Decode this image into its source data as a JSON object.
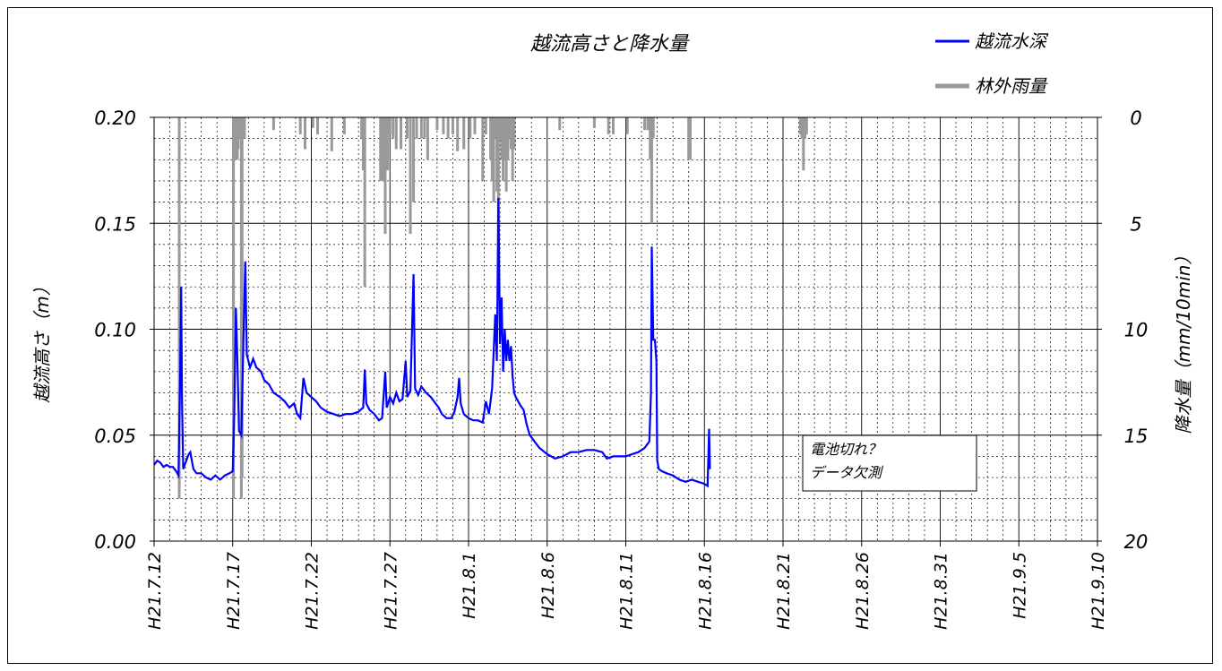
{
  "chart_data": {
    "type": "line",
    "title": "越流高さと降水量",
    "ylabel": "越流高さ（m）",
    "y2label": "降水量（mm/10min）",
    "ylim": [
      0,
      0.2
    ],
    "y2lim": [
      0,
      20
    ],
    "y2_inverted": true,
    "grid": true,
    "legend_position": "top-right",
    "y_ticks": [
      "0.00",
      "0.05",
      "0.10",
      "0.15",
      "0.20"
    ],
    "y2_ticks": [
      "20",
      "15",
      "10",
      "5",
      "0"
    ],
    "x_ticks": [
      "H21.7.12",
      "H21.7.17",
      "H21.7.22",
      "H21.7.27",
      "H21.8.1",
      "H21.8.6",
      "H21.8.11",
      "H21.8.16",
      "H21.8.21",
      "H21.8.26",
      "H21.8.31",
      "H21.9.5",
      "H21.9.10"
    ],
    "x_range_days": [
      0,
      60
    ],
    "series": [
      {
        "name": "越流水深",
        "color": "#0000ff",
        "axis": "left",
        "points": [
          [
            0.0,
            0.036
          ],
          [
            0.2,
            0.038
          ],
          [
            0.4,
            0.037
          ],
          [
            0.6,
            0.035
          ],
          [
            0.8,
            0.036
          ],
          [
            1.0,
            0.035
          ],
          [
            1.2,
            0.035
          ],
          [
            1.4,
            0.033
          ],
          [
            1.55,
            0.031
          ],
          [
            1.65,
            0.075
          ],
          [
            1.72,
            0.12
          ],
          [
            1.78,
            0.065
          ],
          [
            1.85,
            0.034
          ],
          [
            2.0,
            0.037
          ],
          [
            2.2,
            0.041
          ],
          [
            2.3,
            0.042
          ],
          [
            2.5,
            0.034
          ],
          [
            2.7,
            0.032
          ],
          [
            3.0,
            0.032
          ],
          [
            3.3,
            0.03
          ],
          [
            3.6,
            0.029
          ],
          [
            3.9,
            0.031
          ],
          [
            4.2,
            0.029
          ],
          [
            4.5,
            0.031
          ],
          [
            4.8,
            0.032
          ],
          [
            5.0,
            0.033
          ],
          [
            5.1,
            0.06
          ],
          [
            5.2,
            0.11
          ],
          [
            5.3,
            0.085
          ],
          [
            5.4,
            0.052
          ],
          [
            5.55,
            0.05
          ],
          [
            5.7,
            0.1
          ],
          [
            5.8,
            0.132
          ],
          [
            5.9,
            0.088
          ],
          [
            6.1,
            0.082
          ],
          [
            6.3,
            0.086
          ],
          [
            6.5,
            0.082
          ],
          [
            6.8,
            0.08
          ],
          [
            7.0,
            0.076
          ],
          [
            7.3,
            0.074
          ],
          [
            7.6,
            0.07
          ],
          [
            8.0,
            0.068
          ],
          [
            8.3,
            0.066
          ],
          [
            8.6,
            0.063
          ],
          [
            8.9,
            0.065
          ],
          [
            9.1,
            0.06
          ],
          [
            9.3,
            0.058
          ],
          [
            9.5,
            0.077
          ],
          [
            9.7,
            0.07
          ],
          [
            10.0,
            0.068
          ],
          [
            10.3,
            0.066
          ],
          [
            10.6,
            0.063
          ],
          [
            11.0,
            0.061
          ],
          [
            11.4,
            0.06
          ],
          [
            11.8,
            0.059
          ],
          [
            12.2,
            0.06
          ],
          [
            12.6,
            0.06
          ],
          [
            13.0,
            0.061
          ],
          [
            13.3,
            0.063
          ],
          [
            13.4,
            0.081
          ],
          [
            13.5,
            0.065
          ],
          [
            13.7,
            0.062
          ],
          [
            14.0,
            0.06
          ],
          [
            14.3,
            0.057
          ],
          [
            14.5,
            0.058
          ],
          [
            14.7,
            0.08
          ],
          [
            14.8,
            0.063
          ],
          [
            15.0,
            0.068
          ],
          [
            15.2,
            0.065
          ],
          [
            15.4,
            0.07
          ],
          [
            15.6,
            0.066
          ],
          [
            15.8,
            0.067
          ],
          [
            16.0,
            0.085
          ],
          [
            16.1,
            0.068
          ],
          [
            16.3,
            0.071
          ],
          [
            16.5,
            0.126
          ],
          [
            16.6,
            0.072
          ],
          [
            16.8,
            0.069
          ],
          [
            17.0,
            0.073
          ],
          [
            17.3,
            0.07
          ],
          [
            17.6,
            0.068
          ],
          [
            17.9,
            0.065
          ],
          [
            18.1,
            0.063
          ],
          [
            18.3,
            0.06
          ],
          [
            18.6,
            0.058
          ],
          [
            18.9,
            0.058
          ],
          [
            19.1,
            0.061
          ],
          [
            19.3,
            0.068
          ],
          [
            19.4,
            0.077
          ],
          [
            19.5,
            0.065
          ],
          [
            19.7,
            0.06
          ],
          [
            20.0,
            0.058
          ],
          [
            20.3,
            0.057
          ],
          [
            20.6,
            0.057
          ],
          [
            20.9,
            0.056
          ],
          [
            21.1,
            0.066
          ],
          [
            21.3,
            0.06
          ],
          [
            21.5,
            0.072
          ],
          [
            21.6,
            0.09
          ],
          [
            21.7,
            0.107
          ],
          [
            21.8,
            0.085
          ],
          [
            21.9,
            0.162
          ],
          [
            22.0,
            0.093
          ],
          [
            22.1,
            0.115
          ],
          [
            22.2,
            0.08
          ],
          [
            22.3,
            0.1
          ],
          [
            22.4,
            0.085
          ],
          [
            22.5,
            0.095
          ],
          [
            22.6,
            0.085
          ],
          [
            22.7,
            0.092
          ],
          [
            22.8,
            0.078
          ],
          [
            22.9,
            0.07
          ],
          [
            23.0,
            0.068
          ],
          [
            23.3,
            0.064
          ],
          [
            23.5,
            0.062
          ],
          [
            23.7,
            0.055
          ],
          [
            23.9,
            0.05
          ],
          [
            24.2,
            0.047
          ],
          [
            24.5,
            0.044
          ],
          [
            25.0,
            0.041
          ],
          [
            25.5,
            0.039
          ],
          [
            26.0,
            0.04
          ],
          [
            26.5,
            0.042
          ],
          [
            27.0,
            0.042
          ],
          [
            27.5,
            0.043
          ],
          [
            28.0,
            0.043
          ],
          [
            28.5,
            0.042
          ],
          [
            28.8,
            0.039
          ],
          [
            29.2,
            0.04
          ],
          [
            29.6,
            0.04
          ],
          [
            30.0,
            0.04
          ],
          [
            30.4,
            0.041
          ],
          [
            30.8,
            0.042
          ],
          [
            31.2,
            0.044
          ],
          [
            31.5,
            0.047
          ],
          [
            31.6,
            0.07
          ],
          [
            31.65,
            0.139
          ],
          [
            31.75,
            0.095
          ],
          [
            31.85,
            0.095
          ],
          [
            31.95,
            0.085
          ],
          [
            32.0,
            0.038
          ],
          [
            32.1,
            0.034
          ],
          [
            32.3,
            0.033
          ],
          [
            32.6,
            0.032
          ],
          [
            33.0,
            0.031
          ],
          [
            33.4,
            0.029
          ],
          [
            33.8,
            0.028
          ],
          [
            34.2,
            0.029
          ],
          [
            34.6,
            0.028
          ],
          [
            35.0,
            0.027
          ],
          [
            35.2,
            0.026
          ],
          [
            35.3,
            0.053
          ],
          [
            35.35,
            0.034
          ]
        ]
      },
      {
        "name": "林外雨量",
        "color": "#999999",
        "axis": "right",
        "bars": [
          [
            1.6,
            18.0
          ],
          [
            5.05,
            18.0
          ],
          [
            5.2,
            2.0
          ],
          [
            5.3,
            2.0
          ],
          [
            5.35,
            1.5
          ],
          [
            5.45,
            1.0
          ],
          [
            5.55,
            18.0
          ],
          [
            5.6,
            17.0
          ],
          [
            5.65,
            1.0
          ],
          [
            5.75,
            1.0
          ],
          [
            7.6,
            0.6
          ],
          [
            9.3,
            0.8
          ],
          [
            9.6,
            1.5
          ],
          [
            10.1,
            0.5
          ],
          [
            10.4,
            0.8
          ],
          [
            11.3,
            1.6
          ],
          [
            12.1,
            0.8
          ],
          [
            13.2,
            1.0
          ],
          [
            13.3,
            2.5
          ],
          [
            13.4,
            8.0
          ],
          [
            14.4,
            3.0
          ],
          [
            14.55,
            3.0
          ],
          [
            14.7,
            5.5
          ],
          [
            14.85,
            2.5
          ],
          [
            15.0,
            0.8
          ],
          [
            15.2,
            1.0
          ],
          [
            15.4,
            1.5
          ],
          [
            15.7,
            1.5
          ],
          [
            16.1,
            1.0
          ],
          [
            16.3,
            5.5
          ],
          [
            16.5,
            4.0
          ],
          [
            16.7,
            1.0
          ],
          [
            17.0,
            1.0
          ],
          [
            17.2,
            1.0
          ],
          [
            17.4,
            2.0
          ],
          [
            18.0,
            0.6
          ],
          [
            18.4,
            0.8
          ],
          [
            18.7,
            1.0
          ],
          [
            19.0,
            0.8
          ],
          [
            19.3,
            1.6
          ],
          [
            19.7,
            1.5
          ],
          [
            20.1,
            1.0
          ],
          [
            20.4,
            0.8
          ],
          [
            20.9,
            3.0
          ],
          [
            21.1,
            0.8
          ],
          [
            21.4,
            2.0
          ],
          [
            21.5,
            3.0
          ],
          [
            21.6,
            4.0
          ],
          [
            21.7,
            1.0
          ],
          [
            21.8,
            3.5
          ],
          [
            21.9,
            8.0
          ],
          [
            22.0,
            1.0
          ],
          [
            22.1,
            2.0
          ],
          [
            22.2,
            3.0
          ],
          [
            22.3,
            2.0
          ],
          [
            22.4,
            3.5
          ],
          [
            22.5,
            2.0
          ],
          [
            22.6,
            1.0
          ],
          [
            22.7,
            1.5
          ],
          [
            22.8,
            3.0
          ],
          [
            22.9,
            1.5
          ],
          [
            25.8,
            0.6
          ],
          [
            28.0,
            0.5
          ],
          [
            28.9,
            0.8
          ],
          [
            29.2,
            0.8
          ],
          [
            30.1,
            0.8
          ],
          [
            31.2,
            0.6
          ],
          [
            31.4,
            0.6
          ],
          [
            31.55,
            2.0
          ],
          [
            31.65,
            5.0
          ],
          [
            31.75,
            1.0
          ],
          [
            34.0,
            2.0
          ],
          [
            34.1,
            2.0
          ],
          [
            41.1,
            0.8
          ],
          [
            41.2,
            1.0
          ],
          [
            41.3,
            2.5
          ],
          [
            41.4,
            1.0
          ],
          [
            41.5,
            0.8
          ]
        ]
      }
    ],
    "annotation": [
      "電池切れ？",
      "データ欠測"
    ]
  }
}
